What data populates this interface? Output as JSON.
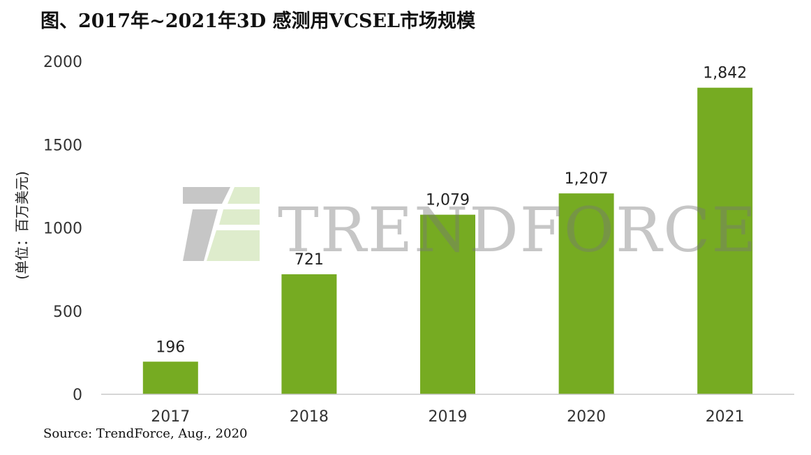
{
  "chart_data": {
    "type": "bar",
    "title": "图、2017年~2021年3D 感测用VCSEL市场规模",
    "ylabel": "(单位：百万美元)",
    "xlabel": "",
    "categories": [
      "2017",
      "2018",
      "2019",
      "2020",
      "2021"
    ],
    "values": [
      196,
      721,
      1079,
      1207,
      1842
    ],
    "value_labels": [
      "196",
      "721",
      "1,079",
      "1,207",
      "1,842"
    ],
    "ylim": [
      0,
      2000
    ],
    "yticks": [
      0,
      500,
      1000,
      1500,
      2000
    ],
    "ytick_labels": [
      "0",
      "500",
      "1000",
      "1500",
      "2000"
    ],
    "bar_color": "#76ab22",
    "grid": false,
    "legend": "none"
  },
  "source": "Source: TrendForce, Aug., 2020",
  "watermark": {
    "brand": "TRENDFORCE",
    "logo": "tf-logo",
    "colors": {
      "logo_dark": "#aaaaaa",
      "logo_light": "#d7e8c0",
      "text": "#8a8a8a"
    }
  }
}
